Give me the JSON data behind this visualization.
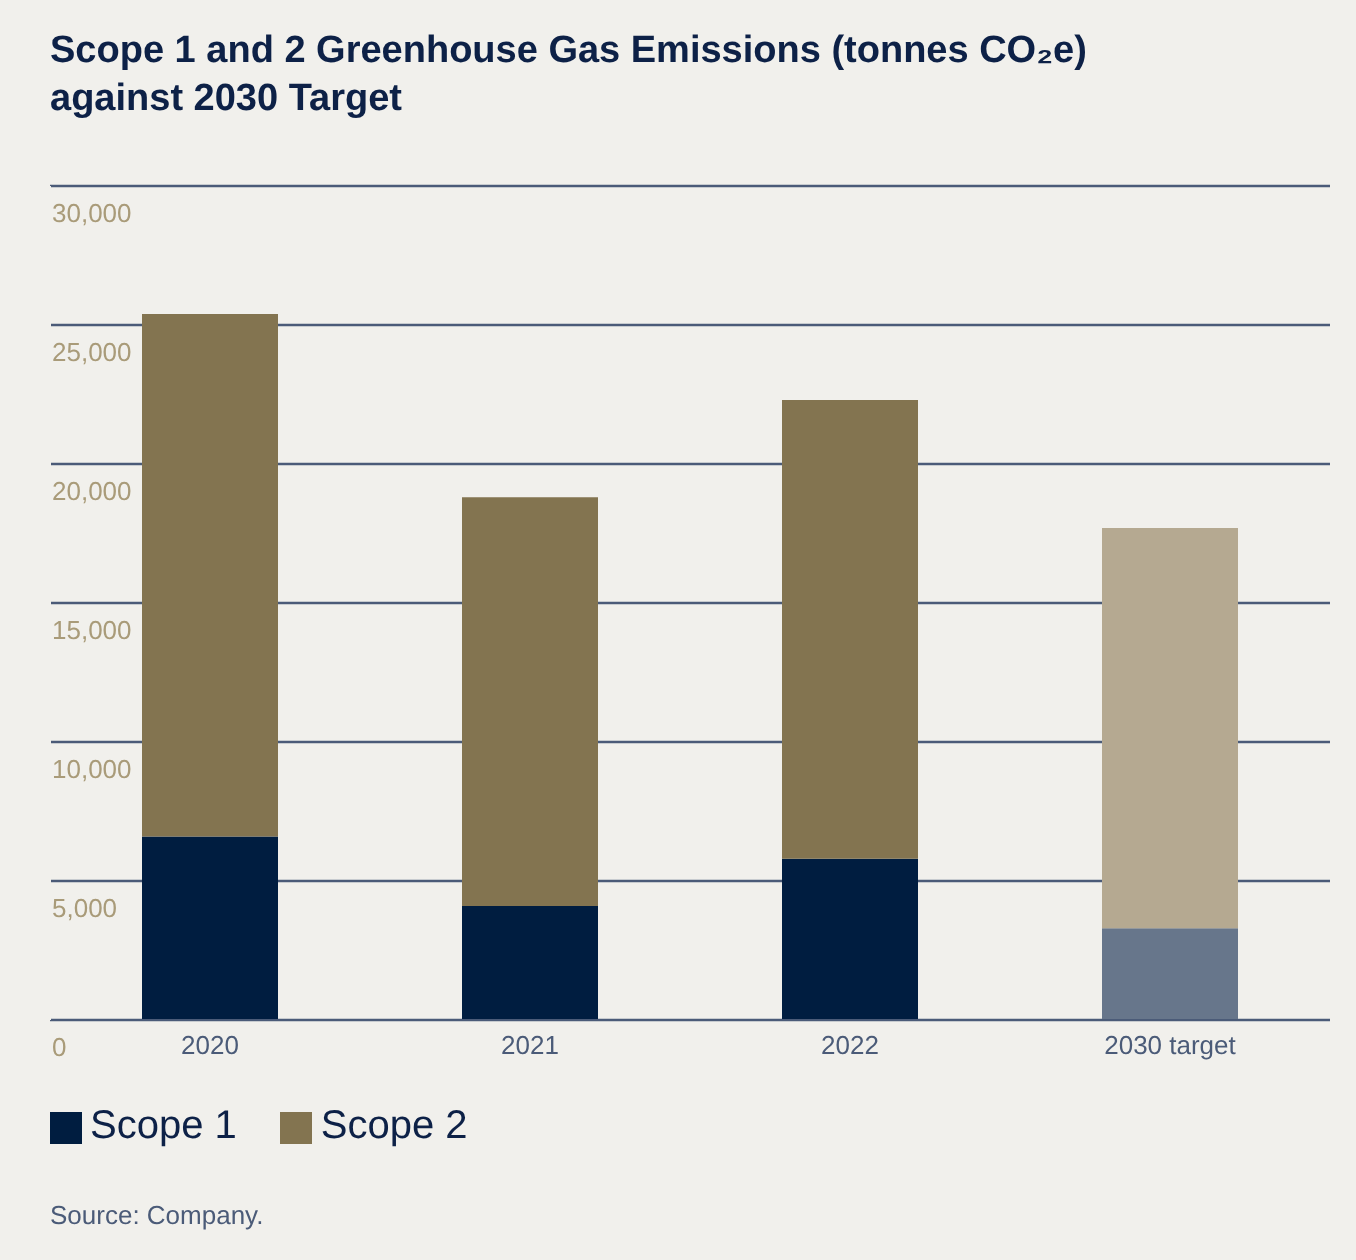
{
  "chart_data": {
    "type": "bar",
    "title": "Scope 1 and 2 Greenhouse Gas Emissions (tonnes CO₂e) against 2030 Target",
    "categories": [
      "2020",
      "2021",
      "2022",
      "2030 target"
    ],
    "series": [
      {
        "name": "Scope 1",
        "color": "#001d40",
        "colors": [
          "#001d40",
          "#001d40",
          "#001d40",
          "#67768b"
        ],
        "values": [
          6600,
          4100,
          5800,
          3300
        ]
      },
      {
        "name": "Scope 2",
        "color": "#837450",
        "colors": [
          "#837450",
          "#837450",
          "#837450",
          "#b5a991"
        ],
        "values": [
          18800,
          14700,
          16500,
          14400
        ]
      }
    ],
    "stacked": true,
    "ylim": [
      0,
      30000
    ],
    "yticks": [
      {
        "value": 0,
        "label": "0"
      },
      {
        "value": 5000,
        "label": "5,000"
      },
      {
        "value": 10000,
        "label": "10,000"
      },
      {
        "value": 15000,
        "label": "15,000"
      },
      {
        "value": 20000,
        "label": "20,000"
      },
      {
        "value": 25000,
        "label": "25,000"
      },
      {
        "value": 30000,
        "label": "30,000"
      }
    ],
    "grid": "y",
    "legend": "bottom",
    "annotations": [
      "Source: Company."
    ]
  }
}
